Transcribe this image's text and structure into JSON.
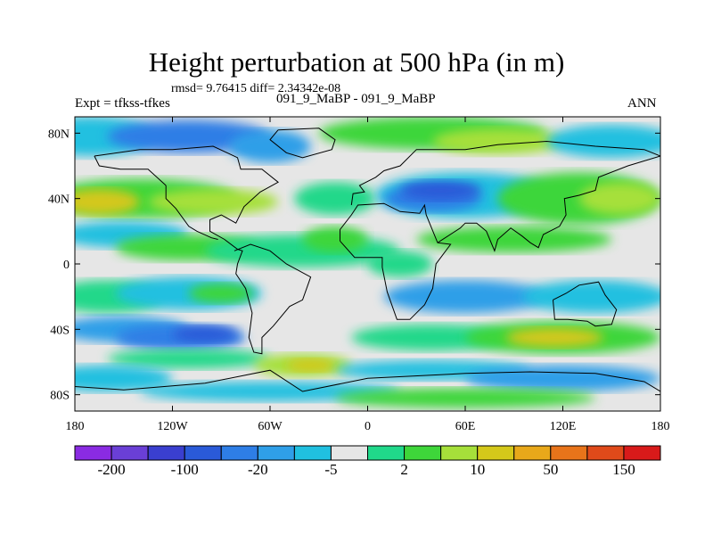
{
  "chart_data": {
    "type": "filled-contour map",
    "title": "Height perturbation at 500 hPa (in m)",
    "stats_text": "rmsd= 9.76415 diff= 2.34342e-08",
    "subtitle_left": "Expt = tfkss-tfkes",
    "subtitle_center": "091_9_MaBP - 091_9_MaBP",
    "subtitle_right": "ANN",
    "x_ticks": [
      "180",
      "120W",
      "60W",
      "0",
      "60E",
      "120E",
      "180"
    ],
    "x_tick_values": [
      -180,
      -120,
      -60,
      0,
      60,
      120,
      180
    ],
    "y_ticks": [
      "80N",
      "40N",
      "0",
      "40S",
      "80S"
    ],
    "y_tick_values": [
      80,
      40,
      0,
      -40,
      -80
    ],
    "xlim": [
      -180,
      180
    ],
    "ylim": [
      -90,
      90
    ],
    "colorbar": {
      "labels": [
        "-200",
        "-100",
        "-20",
        "-5",
        "2",
        "10",
        "50",
        "150"
      ],
      "colors": [
        "#8a2be2",
        "#6a3fd6",
        "#3a3fcf",
        "#2a5ad8",
        "#2e7ee6",
        "#2f9fe8",
        "#20c0e0",
        "#e6e6e6",
        "#20d88a",
        "#3ed63a",
        "#a6e03a",
        "#d4c81a",
        "#e8a81a",
        "#e8741a",
        "#e04a1a",
        "#d81a1a"
      ]
    },
    "regions": [
      {
        "name": "north-pacific-high",
        "lon": -140,
        "lat": 38,
        "value_class": 11
      },
      {
        "name": "north-atlantic-low",
        "lon": 60,
        "lat": 45,
        "value_class": 2
      },
      {
        "name": "arctic-low-west",
        "lon": -120,
        "lat": 75,
        "value_class": 3
      },
      {
        "name": "siberia-high",
        "lon": 60,
        "lat": 78,
        "value_class": 10
      },
      {
        "name": "tropical-low-band",
        "lon": -150,
        "lat": 10,
        "value_class": 5
      },
      {
        "name": "south-pacific-high",
        "lon": -140,
        "lat": -22,
        "value_class": 10
      },
      {
        "name": "southern-ocean-low",
        "lon": -120,
        "lat": -45,
        "value_class": 3
      },
      {
        "name": "indian-ocean-high",
        "lon": 120,
        "lat": -45,
        "value_class": 11
      },
      {
        "name": "antarctic-high",
        "lon": -40,
        "lat": -65,
        "value_class": 10
      },
      {
        "name": "south-atlantic-low",
        "lon": 50,
        "lat": -20,
        "value_class": 4
      }
    ]
  }
}
